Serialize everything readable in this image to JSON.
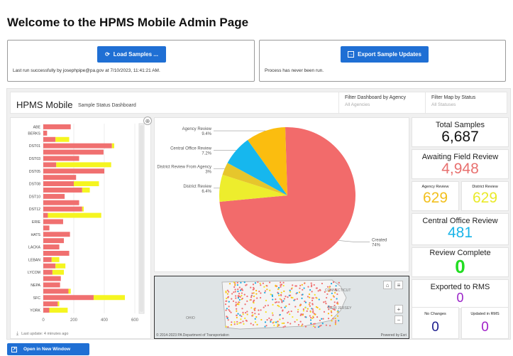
{
  "page": {
    "title": "Welcome to the HPMS Mobile Admin Page"
  },
  "load_card": {
    "button_label": "Load Samples ...",
    "status": "Last run successfully by josephpipe@pa.gov at 7/10/2023, 11:41:21 AM.",
    "icon": "refresh-icon"
  },
  "export_card": {
    "button_label": "Export Sample Updates",
    "status": "Process has never been run.",
    "icon": "arrow-right-box-icon"
  },
  "dashboard": {
    "title": "HPMS Mobile",
    "subtitle": "Sample Status Dashboard",
    "filter_agency": {
      "label": "Filter Dashboard by Agency",
      "value": "All Agencies"
    },
    "filter_status": {
      "label": "Filter Map by Status",
      "value": "All Statuses"
    },
    "bar_last_update": "Last update: 4 minutes ago"
  },
  "stats": {
    "total": {
      "label": "Total Samples",
      "value": "6,687",
      "color": "#111111"
    },
    "awaiting": {
      "label": "Awaiting Field Review",
      "value": "4,948",
      "color": "#e8706f"
    },
    "agency_review": {
      "label": "Agency Review",
      "value": "629",
      "color": "#f2c01e"
    },
    "district_review": {
      "label": "District Review",
      "value": "629",
      "color": "#eaea2a"
    },
    "central_office": {
      "label": "Central Office Review",
      "value": "481",
      "color": "#19b4e8"
    },
    "review_complete": {
      "label": "Review Complete",
      "value": "0",
      "color": "#22dd22"
    },
    "exported": {
      "label": "Exported to RMS",
      "value": "0",
      "color": "#9a22c8"
    },
    "no_changes": {
      "label": "No Changes",
      "value": "0",
      "color": "#1a1a8c"
    },
    "updated_rms": {
      "label": "Updated in RMS",
      "value": "0",
      "color": "#a020c8"
    }
  },
  "map": {
    "credit": "© 2014-2023 PA Department of Transportation",
    "powered": "Powered by Esri",
    "labels": [
      "OHIO",
      "CONNECTICUT",
      "NEW JERSEY"
    ]
  },
  "open_window": {
    "label": "Open in New Window"
  },
  "chart_data": [
    {
      "type": "bar",
      "stacked": true,
      "orientation": "horizontal",
      "categories": [
        "ABE",
        "BERKS",
        "",
        "DST01",
        "",
        "DST03",
        "",
        "DST05",
        "",
        "DST08",
        "",
        "DST10",
        "",
        "DST12",
        "",
        "ERIE",
        "",
        "HATS",
        "",
        "LACKA",
        "",
        "LEBAN",
        "",
        "LYCOM",
        "",
        "NEPA",
        "",
        "SFC",
        "",
        "YORK"
      ],
      "series": [
        {
          "color": "#f07070",
          "values": [
            180,
            25,
            80,
            450,
            395,
            235,
            85,
            400,
            215,
            200,
            255,
            140,
            235,
            255,
            30,
            130,
            40,
            175,
            135,
            105,
            170,
            55,
            80,
            60,
            115,
            110,
            165,
            330,
            95,
            40
          ]
        },
        {
          "color": "#f5f520",
          "values": [
            0,
            0,
            90,
            15,
            0,
            0,
            360,
            0,
            0,
            165,
            50,
            0,
            0,
            10,
            350,
            0,
            0,
            0,
            0,
            0,
            0,
            50,
            65,
            75,
            0,
            0,
            15,
            205,
            10,
            120
          ]
        }
      ],
      "xlim": [
        0,
        600
      ],
      "xticks": [
        "0",
        "200",
        "400",
        "600"
      ]
    },
    {
      "type": "pie",
      "slices": [
        {
          "label": "Created",
          "pct_label": "74%",
          "value": 74,
          "color": "#f26b6b"
        },
        {
          "label": "District Review",
          "pct_label": "6.4%",
          "value": 6.4,
          "color": "#eded2d"
        },
        {
          "label": "District Review From Agency",
          "pct_label": "3%",
          "value": 3,
          "color": "#e6c62c"
        },
        {
          "label": "Central Office Review",
          "pct_label": "7.2%",
          "value": 7.2,
          "color": "#16b7ee"
        },
        {
          "label": "Agency Review",
          "pct_label": "9.4%",
          "value": 9.4,
          "color": "#fbbd0f"
        }
      ]
    }
  ]
}
